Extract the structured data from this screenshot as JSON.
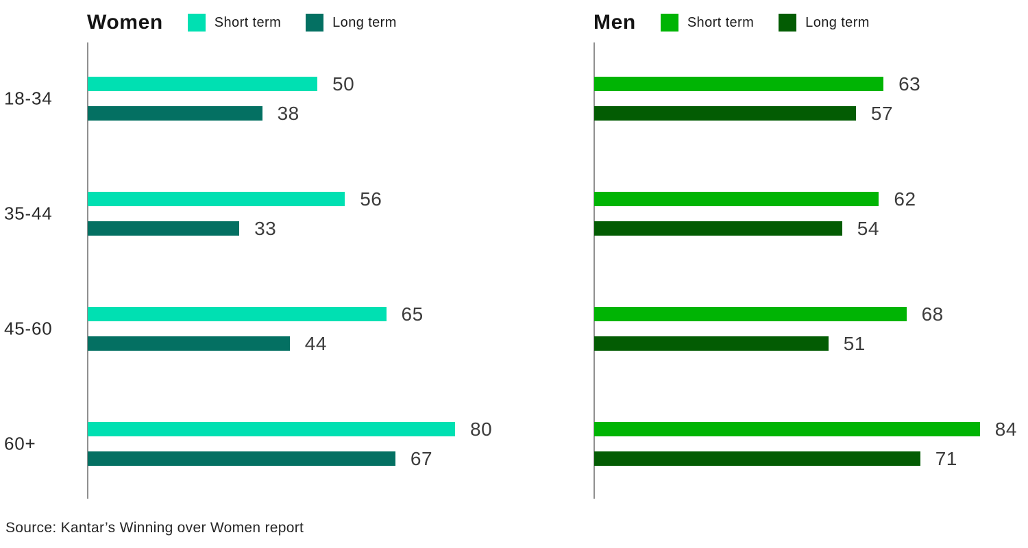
{
  "chart_data": [
    {
      "type": "bar",
      "orientation": "horizontal",
      "title": "Women",
      "categories": [
        "18-34",
        "35-44",
        "45-60",
        "60+"
      ],
      "series": [
        {
          "name": "Short term",
          "color": "#00E0B2",
          "values": [
            50,
            56,
            65,
            80
          ]
        },
        {
          "name": "Long term",
          "color": "#047062",
          "values": [
            38,
            33,
            44,
            67
          ]
        }
      ],
      "xlim": [
        0,
        100
      ],
      "grid": false,
      "legend_position": "top",
      "value_labels": true
    },
    {
      "type": "bar",
      "orientation": "horizontal",
      "title": "Men",
      "categories": [
        "18-34",
        "35-44",
        "45-60",
        "60+"
      ],
      "series": [
        {
          "name": "Short term",
          "color": "#00B404",
          "values": [
            63,
            62,
            68,
            84
          ]
        },
        {
          "name": "Long term",
          "color": "#035C03",
          "values": [
            57,
            54,
            51,
            71
          ]
        }
      ],
      "xlim": [
        0,
        100
      ],
      "grid": false,
      "legend_position": "top",
      "value_labels": true
    }
  ],
  "source_note": "Source: Kantar’s Winning over Women report",
  "colors": {
    "axis_line": "#8f8f8f",
    "value_text": "#3c3c3c",
    "category_text": "#2a2a2a",
    "title_text": "#141414",
    "background": "#ffffff"
  }
}
